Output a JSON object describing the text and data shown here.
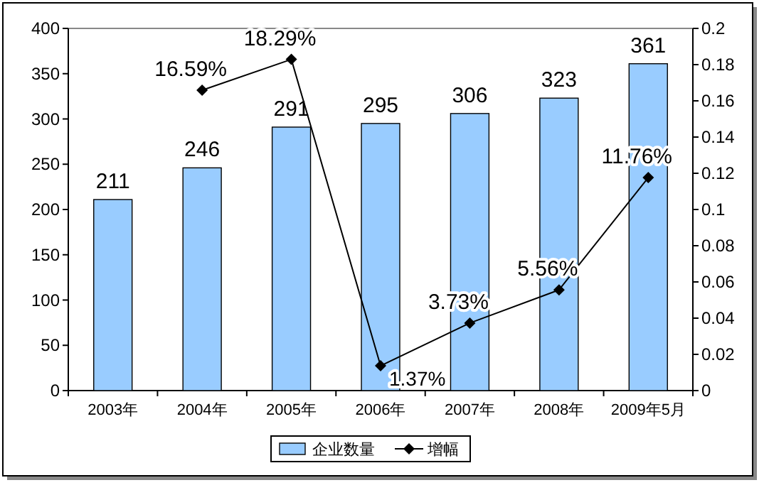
{
  "chart_data": {
    "type": "bar",
    "categories": [
      "2003年",
      "2004年",
      "2005年",
      "2006年",
      "2007年",
      "2008年",
      "2009年5月"
    ],
    "series": [
      {
        "name": "企业数量",
        "color": "#99ccff",
        "values": [
          211,
          246,
          291,
          295,
          306,
          323,
          361
        ],
        "data_labels": true
      },
      {
        "name": "增幅",
        "type": "line",
        "axis": "y2",
        "color": "#000000",
        "marker": "diamond",
        "values": [
          null,
          0.1659,
          0.1829,
          0.0137,
          0.0373,
          0.0556,
          0.1176
        ],
        "value_labels": [
          null,
          "16.59%",
          "18.29%",
          "1.37%",
          "3.73%",
          "5.56%",
          "11.76%"
        ]
      }
    ],
    "ylim": [
      0,
      400
    ],
    "yticks": [
      0,
      50,
      100,
      150,
      200,
      250,
      300,
      350,
      400
    ],
    "y2lim": [
      0,
      0.2
    ],
    "y2ticks": [
      0,
      0.02,
      0.04,
      0.06,
      0.08,
      0.1,
      0.12,
      0.14,
      0.16,
      0.18,
      0.2
    ],
    "grid": false,
    "legend": "bottom"
  }
}
